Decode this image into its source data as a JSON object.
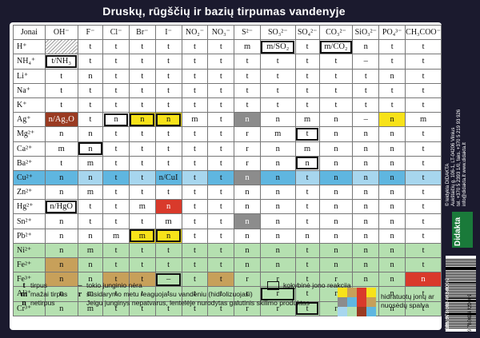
{
  "title": "Druskų, rūgščių ir bazių tirpumas vandenyje",
  "colors": {
    "yellow": "#f7e21a",
    "brown": "#c7a05a",
    "red": "#d93a2b",
    "gray": "#8c8c8c",
    "blue": "#5fb6e0",
    "lightblue": "#a7d6ee",
    "green": "#b5e0b0",
    "rust": "#9a3b22",
    "hatch": "#9a9a9a"
  },
  "header": [
    "Jonai",
    "OH⁻",
    "F⁻",
    "Cl⁻",
    "Br⁻",
    "I⁻",
    "NO₂⁻",
    "NO₃⁻",
    "S²⁻",
    "SO₃²⁻",
    "SO₄²⁻",
    "CO₃²⁻",
    "SiO₃²⁻",
    "PO₄³⁻",
    "CH₃COO⁻"
  ],
  "rows": [
    {
      "ion": "H⁺",
      "cells": [
        "",
        "t",
        "t",
        "t",
        "t",
        "t",
        "t",
        "m",
        "m/SO₂",
        "t",
        "m/CO₂",
        "n",
        "t",
        "t"
      ]
    },
    {
      "ion": "NH₄⁺",
      "cells": [
        "t/NH₃",
        "t",
        "t",
        "t",
        "t",
        "t",
        "t",
        "t",
        "t",
        "t",
        "t",
        "–",
        "t",
        "t"
      ]
    },
    {
      "ion": "Li⁺",
      "cells": [
        "t",
        "n",
        "t",
        "t",
        "t",
        "t",
        "t",
        "t",
        "t",
        "t",
        "t",
        "t",
        "n",
        "t"
      ]
    },
    {
      "ion": "Na⁺",
      "cells": [
        "t",
        "t",
        "t",
        "t",
        "t",
        "t",
        "t",
        "t",
        "t",
        "t",
        "t",
        "t",
        "t",
        "t"
      ]
    },
    {
      "ion": "K⁺",
      "cells": [
        "t",
        "t",
        "t",
        "t",
        "t",
        "t",
        "t",
        "t",
        "t",
        "t",
        "t",
        "t",
        "t",
        "t"
      ]
    },
    {
      "ion": "Ag⁺",
      "cells": [
        "n/Ag₂O",
        "t",
        "n",
        "n",
        "n",
        "m",
        "t",
        "n",
        "n",
        "m",
        "n",
        "–",
        "n",
        "m"
      ]
    },
    {
      "ion": "Mg²⁺",
      "cells": [
        "n",
        "n",
        "t",
        "t",
        "t",
        "t",
        "t",
        "r",
        "m",
        "t",
        "n",
        "n",
        "n",
        "t"
      ]
    },
    {
      "ion": "Ca²⁺",
      "cells": [
        "m",
        "n",
        "t",
        "t",
        "t",
        "t",
        "t",
        "r",
        "n",
        "m",
        "n",
        "n",
        "n",
        "t"
      ]
    },
    {
      "ion": "Ba²⁺",
      "cells": [
        "t",
        "m",
        "t",
        "t",
        "t",
        "t",
        "t",
        "r",
        "n",
        "n",
        "n",
        "n",
        "n",
        "t"
      ]
    },
    {
      "ion": "Cu²⁺",
      "cells": [
        "n",
        "n",
        "t",
        "t",
        "n/CuI",
        "t",
        "t",
        "n",
        "n",
        "t",
        "n",
        "n",
        "n",
        "t"
      ]
    },
    {
      "ion": "Zn²⁺",
      "cells": [
        "n",
        "m",
        "t",
        "t",
        "t",
        "t",
        "t",
        "n",
        "n",
        "t",
        "n",
        "n",
        "n",
        "t"
      ]
    },
    {
      "ion": "Hg²⁺",
      "cells": [
        "n/HgO",
        "t",
        "t",
        "m",
        "n",
        "t",
        "t",
        "n",
        "n",
        "t",
        "n",
        "n",
        "n",
        "t"
      ]
    },
    {
      "ion": "Sn²⁺",
      "cells": [
        "n",
        "t",
        "t",
        "t",
        "m",
        "t",
        "t",
        "n",
        "n",
        "t",
        "n",
        "n",
        "n",
        "t"
      ]
    },
    {
      "ion": "Pb²⁺",
      "cells": [
        "n",
        "n",
        "m",
        "m",
        "n",
        "t",
        "t",
        "n",
        "n",
        "n",
        "n",
        "n",
        "n",
        "t"
      ]
    },
    {
      "ion": "Ni²⁺",
      "cells": [
        "n",
        "m",
        "t",
        "t",
        "t",
        "t",
        "t",
        "n",
        "n",
        "t",
        "n",
        "n",
        "n",
        "t"
      ]
    },
    {
      "ion": "Fe²⁺",
      "cells": [
        "n",
        "n",
        "t",
        "t",
        "t",
        "t",
        "t",
        "n",
        "n",
        "t",
        "n",
        "n",
        "n",
        "t"
      ]
    },
    {
      "ion": "Fe³⁺",
      "cells": [
        "n",
        "n",
        "t",
        "t",
        "–",
        "t",
        "t",
        "r",
        "r",
        "t",
        "r",
        "n",
        "n",
        "n"
      ]
    },
    {
      "ion": "Al³⁺",
      "cells": [
        "n",
        "m",
        "t",
        "t",
        "t",
        "t",
        "t",
        "r",
        "r",
        "t",
        "r",
        "n",
        "n",
        "t"
      ]
    },
    {
      "ion": "Cr³⁺",
      "cells": [
        "n",
        "m",
        "t",
        "t",
        "t",
        "t",
        "t",
        "r",
        "r",
        "t",
        "r",
        "n",
        "n",
        "t"
      ]
    }
  ],
  "legend": {
    "t": "tirpus",
    "m": "mažai tirpus",
    "n": "netirpus",
    "dash": "tokio junginio nėra",
    "r": "susidarymo metu reaguoja su vandeniu (hidrolizuojasi)",
    "note": "Jeigu junginys nepatvarus, lentelėje nurodytas galutinis skilimo produktas",
    "box": "kokybinė jono reakcija",
    "color": "hidratuotų jonų ar nuosėdų spalva",
    "t_sym": "t",
    "m_sym": "m",
    "n_sym": "n",
    "dash_sym": "–",
    "r_sym": "r"
  },
  "publisher": {
    "brand": "Didakta",
    "line1": "© leidykla DIDAKTA",
    "line2": "Aukštaičių g. 106-1, LT-04206 Vilnius",
    "line3": "tel. +370 5 2393 1/0, faks. +370 5 219 93 926",
    "line4": "info@didakta.lt  www.didakta.lt",
    "isbn": "ISBN 978-609-442-000-9",
    "barcode": "9 786094 420009"
  }
}
